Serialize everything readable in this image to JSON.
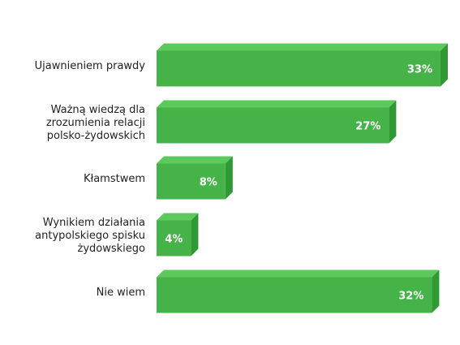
{
  "chart_data": {
    "type": "bar",
    "orientation": "horizontal",
    "categories": [
      "Ujawnieniem prawdy",
      "Ważną wiedzą dla zrozumienia relacji polsko-żydowskich",
      "Kłamstwem",
      "Wynikiem działania antypolskiego spisku żydowskiego",
      "Nie wiem"
    ],
    "category_lines": [
      [
        "Ujawnieniem prawdy"
      ],
      [
        "Ważną wiedzą dla",
        "zrozumienia relacji",
        "polsko-żydowskich"
      ],
      [
        "Kłamstwem"
      ],
      [
        "Wynikiem działania",
        "antypolskiego spisku",
        "żydowskiego"
      ],
      [
        "Nie wiem"
      ]
    ],
    "values": [
      33,
      27,
      8,
      4,
      32
    ],
    "value_labels": [
      "33%",
      "27%",
      "8%",
      "4%",
      "32%"
    ],
    "unit": "%",
    "title": "",
    "xlabel": "",
    "ylabel": "",
    "xlim": [
      0,
      33
    ],
    "grid": false,
    "legend": "none",
    "colors": {
      "bar_front": "#46b349",
      "bar_top": "#5cc95c",
      "bar_side": "#2f9a34",
      "label_text": "#222222",
      "value_text": "#ffffff"
    }
  }
}
